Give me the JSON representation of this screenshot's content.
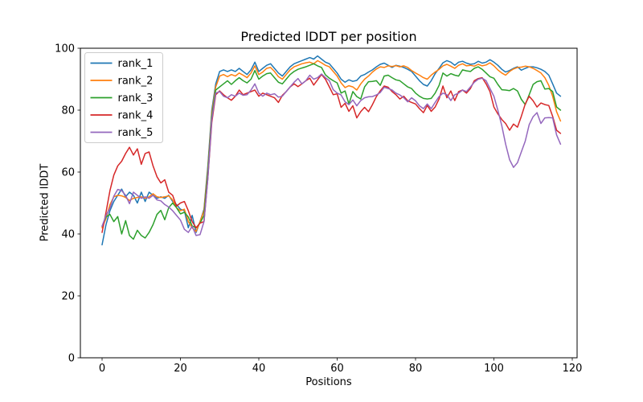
{
  "chart_data": {
    "type": "line",
    "title": "Predicted lDDT per position",
    "xlabel": "Positions",
    "ylabel": "Predicted lDDT",
    "xlim": [
      -5.5,
      121
    ],
    "ylim": [
      0,
      100
    ],
    "xticks": [
      0,
      20,
      40,
      60,
      80,
      100,
      120
    ],
    "yticks": [
      0,
      20,
      40,
      60,
      80,
      100
    ],
    "grid": false,
    "legend_position": "upper-left",
    "background": "#ffffff",
    "x_start": 0,
    "x_step": 1,
    "series": [
      {
        "name": "rank_1",
        "color": "#1f77b4",
        "values": [
          36.5,
          43,
          47.5,
          50.5,
          52.5,
          54.5,
          52,
          53.5,
          52.5,
          50,
          53.5,
          50.5,
          53.5,
          52.5,
          51.5,
          52,
          51.5,
          52.5,
          50.5,
          49.5,
          48,
          47.5,
          42,
          46,
          40.5,
          44,
          48,
          62,
          80,
          88.5,
          92.5,
          93,
          92.5,
          93,
          92.5,
          93.5,
          92.5,
          91.5,
          93,
          95.5,
          92.5,
          93.5,
          94.5,
          95,
          93.5,
          92,
          91,
          92.5,
          94,
          95,
          95.5,
          96,
          96.5,
          97,
          96.5,
          97.5,
          96.5,
          95.5,
          95,
          93.5,
          92,
          90,
          89,
          89.8,
          89.3,
          89.6,
          91,
          91.5,
          92.3,
          93,
          94,
          94.8,
          95.2,
          94.5,
          93.8,
          94.5,
          94.2,
          93.8,
          93.2,
          92.5,
          91,
          89.5,
          88.3,
          87.8,
          89.5,
          91.8,
          93.5,
          95.3,
          96,
          95.5,
          94.5,
          95.5,
          95.8,
          95.2,
          94.8,
          95,
          95.8,
          95.2,
          95.5,
          96.3,
          95.5,
          94.5,
          93.2,
          92.3,
          92.8,
          93.5,
          94,
          92.9,
          93.5,
          94,
          94,
          93.7,
          93.2,
          92.5,
          91.3,
          88.5,
          85.5,
          84.5
        ]
      },
      {
        "name": "rank_2",
        "color": "#ff7f0e",
        "values": [
          42,
          45,
          49.5,
          52,
          52.5,
          52.3,
          51.8,
          50.8,
          51.5,
          51.8,
          52,
          51.5,
          52,
          53,
          52,
          51.8,
          52,
          52.3,
          51,
          48.5,
          47.5,
          48,
          44,
          42,
          40.8,
          44,
          47.5,
          61,
          79,
          87.5,
          91,
          91.5,
          90.8,
          91.5,
          91,
          92,
          91.3,
          90.5,
          92,
          94.3,
          91.5,
          92.3,
          93.5,
          93.8,
          92.5,
          90.8,
          90,
          91.5,
          93,
          94,
          94.5,
          95,
          95.3,
          95.5,
          95,
          96,
          95.3,
          94.5,
          94,
          92.5,
          91,
          88.8,
          87.3,
          87.9,
          87.5,
          86.5,
          88.5,
          90,
          91,
          92.3,
          93.3,
          94,
          93.8,
          94.3,
          94.1,
          94.4,
          94,
          94.3,
          93.8,
          92.8,
          92,
          91.3,
          90.5,
          90,
          91.3,
          92.3,
          93.2,
          94.3,
          94.8,
          94.2,
          93.5,
          94.5,
          95,
          94.3,
          94.5,
          94.2,
          94.8,
          94.3,
          94.6,
          95.3,
          94.3,
          93,
          92,
          91.3,
          92.5,
          93.3,
          93.8,
          93.9,
          94.2,
          94,
          93.5,
          92.8,
          92,
          90.5,
          88,
          84.5,
          79.5,
          76.5
        ]
      },
      {
        "name": "rank_3",
        "color": "#2ca02c",
        "values": [
          42.5,
          45.5,
          46.3,
          44,
          45.6,
          40,
          44.3,
          39.5,
          38.3,
          41.2,
          39.5,
          38.7,
          40.5,
          43,
          46.3,
          47.6,
          44.6,
          48.5,
          50,
          48.5,
          46.5,
          47,
          45.5,
          42.6,
          42,
          43.5,
          46,
          60,
          78,
          86.5,
          87.5,
          88.5,
          89.5,
          88.3,
          89.5,
          90.5,
          89.5,
          88.8,
          90,
          92.8,
          90,
          91,
          91.8,
          92,
          90.5,
          89,
          88.5,
          90,
          91.5,
          92.5,
          93.2,
          93.6,
          94,
          94.5,
          95,
          94.3,
          93.8,
          91.4,
          90.3,
          89.5,
          88.8,
          85.5,
          86.2,
          82,
          86,
          84.4,
          83.6,
          87.5,
          89.2,
          89.3,
          89.5,
          88,
          91,
          91.3,
          90.5,
          89.8,
          89.5,
          88.5,
          87.5,
          87,
          85.5,
          84.5,
          83.8,
          83.6,
          83.8,
          85.5,
          88,
          92,
          91,
          91.8,
          91.3,
          91,
          93,
          92.7,
          92.5,
          93.5,
          94,
          93.2,
          92,
          90.8,
          90.3,
          88.3,
          86.6,
          86.5,
          86.3,
          87,
          86.2,
          83.5,
          81.8,
          85,
          88.3,
          89.2,
          89.5,
          86.8,
          87,
          86,
          81,
          80
        ]
      },
      {
        "name": "rank_4",
        "color": "#d62728",
        "values": [
          40.5,
          47,
          54,
          59,
          62,
          63.5,
          66,
          68,
          65.5,
          67.5,
          62.5,
          66,
          66.5,
          62,
          58.5,
          56.5,
          57.5,
          53.5,
          52.5,
          49,
          50,
          50.5,
          47.5,
          44,
          42,
          43.5,
          44,
          58,
          76,
          85,
          86.2,
          85,
          84,
          83.2,
          84.5,
          86.5,
          85,
          85.5,
          86,
          86.5,
          84.5,
          85.5,
          85,
          84.5,
          84,
          82.5,
          84.8,
          86,
          87.5,
          88.5,
          87.6,
          88.5,
          89.5,
          90.3,
          88.1,
          89.8,
          91.5,
          90,
          87.5,
          85,
          85.3,
          80.9,
          82.2,
          79.6,
          81.4,
          77.5,
          79.5,
          80.9,
          79.5,
          81.8,
          84.4,
          86.2,
          87.8,
          87.4,
          86,
          85,
          83.6,
          84.5,
          83,
          82.5,
          82,
          80.5,
          79.2,
          81.5,
          79.6,
          81,
          83.6,
          87.8,
          84,
          86.2,
          83.1,
          86,
          86.5,
          85.5,
          87,
          89.5,
          90.2,
          90.5,
          88.5,
          86,
          81,
          78.8,
          77,
          75.7,
          73.5,
          75.5,
          74.5,
          78,
          82,
          84.5,
          83,
          81,
          82.3,
          81.8,
          81.5,
          78,
          73.5,
          72.5
        ]
      },
      {
        "name": "rank_5",
        "color": "#9467bd",
        "values": [
          42.5,
          46,
          48.3,
          52.2,
          54.4,
          54,
          52.5,
          49.8,
          53.5,
          52.5,
          51.5,
          52,
          51.5,
          52.5,
          51,
          50.7,
          49.5,
          48.7,
          47.5,
          46,
          44.5,
          41.5,
          40.5,
          42.5,
          39.5,
          39.8,
          44,
          58,
          77,
          85.5,
          86,
          84.5,
          84,
          85,
          84.5,
          85.5,
          84.8,
          85,
          86.5,
          88.5,
          85.5,
          84.5,
          85.5,
          85,
          85.3,
          84.2,
          84.5,
          86,
          87.5,
          89,
          90.2,
          88.5,
          89.5,
          91.3,
          90,
          90.5,
          91.7,
          90.5,
          89.5,
          86.6,
          85.5,
          84.9,
          82.7,
          81.8,
          83.3,
          81.4,
          83.1,
          84,
          84.3,
          84.4,
          84.9,
          85.7,
          87.4,
          87,
          86.5,
          85.5,
          84.9,
          84,
          82.7,
          84,
          83,
          81.4,
          80.5,
          82,
          80.5,
          82.5,
          84.4,
          85.5,
          85,
          83.1,
          85,
          85.5,
          86.5,
          86,
          87.5,
          89,
          90,
          90.3,
          89.5,
          87,
          84.5,
          80,
          75,
          69,
          64,
          61.5,
          63,
          66.5,
          70,
          75.3,
          77.9,
          79.2,
          75.7,
          77.5,
          77.6,
          77.5,
          72,
          69
        ]
      }
    ]
  }
}
